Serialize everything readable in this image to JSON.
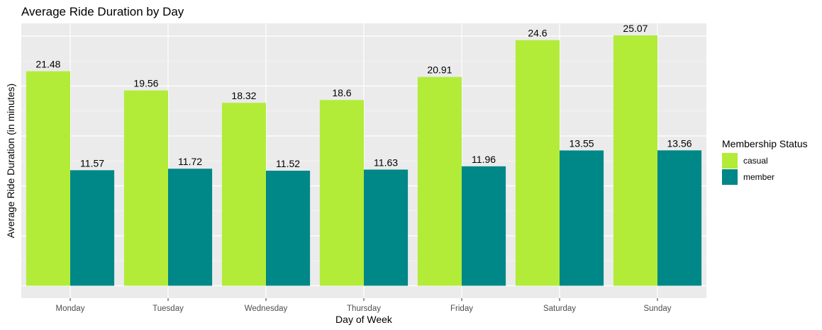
{
  "chart_data": {
    "type": "bar",
    "title": "Average Ride Duration by Day",
    "xlabel": "Day of Week",
    "ylabel": "Average Ride Duration (in minutes)",
    "categories": [
      "Monday",
      "Tuesday",
      "Wednesday",
      "Thursday",
      "Friday",
      "Saturday",
      "Sunday"
    ],
    "series": [
      {
        "name": "casual",
        "color": "#b2ec39",
        "values": [
          21.48,
          19.56,
          18.32,
          18.6,
          20.91,
          24.6,
          25.07
        ]
      },
      {
        "name": "member",
        "color": "#008787",
        "values": [
          11.57,
          11.72,
          11.52,
          11.63,
          11.96,
          13.55,
          13.56
        ]
      }
    ],
    "ylim": [
      0,
      26.3
    ],
    "grid": true,
    "y_tick_labels_shown": false,
    "panel_background": "#ebebeb",
    "legend": {
      "title": "Membership Status",
      "position": "right"
    }
  }
}
